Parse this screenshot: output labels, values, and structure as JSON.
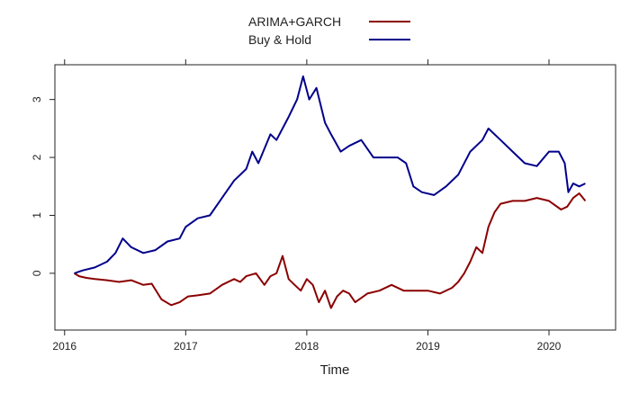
{
  "chart_data": {
    "type": "line",
    "title": "",
    "xlabel": "Time",
    "ylabel": "",
    "xlim": [
      2015.92,
      2020.55
    ],
    "ylim": [
      -0.98,
      3.6
    ],
    "xticks": [
      2016,
      2017,
      2018,
      2019,
      2020
    ],
    "yticks": [
      0,
      1,
      2,
      3
    ],
    "grid": false,
    "legend_position": "top-center",
    "series": [
      {
        "name": "ARIMA+GARCH",
        "color": "#8B0000",
        "x": [
          2016.08,
          2016.12,
          2016.18,
          2016.25,
          2016.35,
          2016.45,
          2016.55,
          2016.65,
          2016.72,
          2016.8,
          2016.88,
          2016.95,
          2017.02,
          2017.1,
          2017.2,
          2017.3,
          2017.4,
          2017.45,
          2017.5,
          2017.58,
          2017.65,
          2017.7,
          2017.75,
          2017.8,
          2017.85,
          2017.9,
          2017.95,
          2018.0,
          2018.05,
          2018.1,
          2018.15,
          2018.2,
          2018.25,
          2018.3,
          2018.35,
          2018.4,
          2018.5,
          2018.6,
          2018.7,
          2018.8,
          2018.9,
          2019.0,
          2019.1,
          2019.2,
          2019.25,
          2019.3,
          2019.35,
          2019.4,
          2019.45,
          2019.5,
          2019.55,
          2019.6,
          2019.7,
          2019.8,
          2019.9,
          2020.0,
          2020.1,
          2020.15,
          2020.2,
          2020.25,
          2020.3
        ],
        "values": [
          0.0,
          -0.05,
          -0.08,
          -0.1,
          -0.12,
          -0.15,
          -0.12,
          -0.2,
          -0.18,
          -0.45,
          -0.55,
          -0.5,
          -0.4,
          -0.38,
          -0.35,
          -0.2,
          -0.1,
          -0.15,
          -0.05,
          0.0,
          -0.2,
          -0.05,
          0.0,
          0.3,
          -0.1,
          -0.2,
          -0.3,
          -0.1,
          -0.2,
          -0.5,
          -0.3,
          -0.6,
          -0.4,
          -0.3,
          -0.35,
          -0.5,
          -0.35,
          -0.3,
          -0.2,
          -0.3,
          -0.3,
          -0.3,
          -0.35,
          -0.25,
          -0.15,
          0.0,
          0.2,
          0.45,
          0.35,
          0.8,
          1.05,
          1.2,
          1.25,
          1.25,
          1.3,
          1.25,
          1.1,
          1.15,
          1.3,
          1.38,
          1.25
        ]
      },
      {
        "name": "Buy & Hold",
        "color": "#00008B",
        "x": [
          2016.08,
          2016.15,
          2016.25,
          2016.35,
          2016.42,
          2016.48,
          2016.55,
          2016.65,
          2016.75,
          2016.85,
          2016.95,
          2017.0,
          2017.1,
          2017.2,
          2017.3,
          2017.4,
          2017.45,
          2017.5,
          2017.55,
          2017.6,
          2017.7,
          2017.75,
          2017.85,
          2017.92,
          2017.97,
          2018.02,
          2018.08,
          2018.15,
          2018.2,
          2018.28,
          2018.35,
          2018.45,
          2018.55,
          2018.65,
          2018.75,
          2018.82,
          2018.88,
          2018.95,
          2019.05,
          2019.15,
          2019.25,
          2019.35,
          2019.45,
          2019.5,
          2019.6,
          2019.7,
          2019.8,
          2019.9,
          2020.0,
          2020.08,
          2020.13,
          2020.16,
          2020.2,
          2020.25,
          2020.3
        ],
        "values": [
          0.0,
          0.05,
          0.1,
          0.2,
          0.35,
          0.6,
          0.45,
          0.35,
          0.4,
          0.55,
          0.6,
          0.8,
          0.95,
          1.0,
          1.3,
          1.6,
          1.7,
          1.8,
          2.1,
          1.9,
          2.4,
          2.3,
          2.7,
          3.0,
          3.4,
          3.0,
          3.2,
          2.6,
          2.4,
          2.1,
          2.2,
          2.3,
          2.0,
          2.0,
          2.0,
          1.9,
          1.5,
          1.4,
          1.35,
          1.5,
          1.7,
          2.1,
          2.3,
          2.5,
          2.3,
          2.1,
          1.9,
          1.85,
          2.1,
          2.1,
          1.9,
          1.4,
          1.55,
          1.5,
          1.55
        ]
      }
    ]
  }
}
